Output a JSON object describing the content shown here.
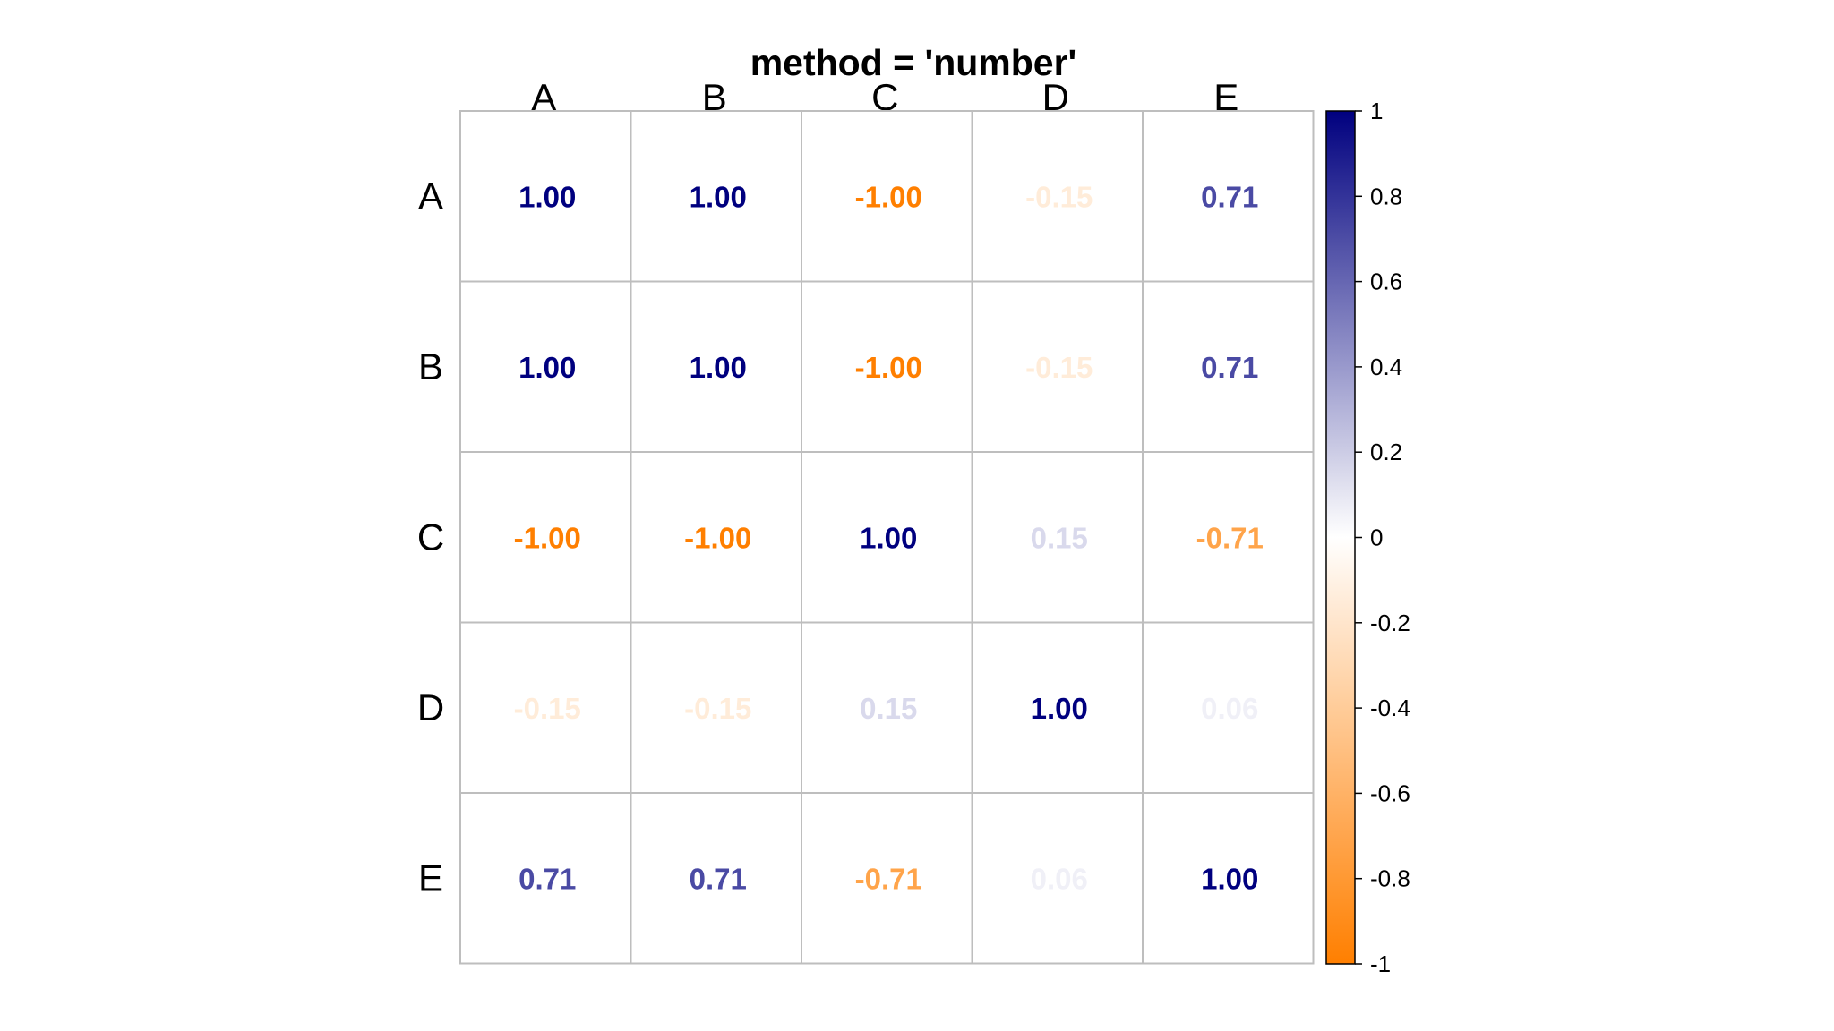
{
  "chart_data": {
    "type": "heatmap",
    "title": "method = 'number'",
    "method": "number",
    "columns": [
      "A",
      "B",
      "C",
      "D",
      "E"
    ],
    "rows": [
      "A",
      "B",
      "C",
      "D",
      "E"
    ],
    "values": [
      [
        1.0,
        1.0,
        -1.0,
        -0.15,
        0.71
      ],
      [
        1.0,
        1.0,
        -1.0,
        -0.15,
        0.71
      ],
      [
        -1.0,
        -1.0,
        1.0,
        0.15,
        -0.71
      ],
      [
        -0.15,
        -0.15,
        0.15,
        1.0,
        0.06
      ],
      [
        0.71,
        0.71,
        -0.71,
        0.06,
        1.0
      ]
    ],
    "value_labels": [
      [
        "1.00",
        "1.00",
        "-1.00",
        "-0.15",
        "0.71"
      ],
      [
        "1.00",
        "1.00",
        "-1.00",
        "-0.15",
        "0.71"
      ],
      [
        "-1.00",
        "-1.00",
        "1.00",
        "0.15",
        "-0.71"
      ],
      [
        "-0.15",
        "-0.15",
        "0.15",
        "1.00",
        "0.06"
      ],
      [
        "0.71",
        "0.71",
        "-0.71",
        "0.06",
        "1.00"
      ]
    ],
    "legend": {
      "range": [
        -1,
        1
      ],
      "ticks": [
        1,
        0.8,
        0.6,
        0.4,
        0.2,
        0,
        -0.2,
        -0.4,
        -0.6,
        -0.8,
        -1
      ],
      "tick_labels": [
        "1",
        "0.8",
        "0.6",
        "0.4",
        "0.2",
        "0",
        "-0.2",
        "-0.4",
        "-0.6",
        "-0.8",
        "-1"
      ],
      "placement": "right"
    },
    "colors": {
      "positive": "#00007F",
      "zero": "#FFFFFF",
      "negative": "#FF7F00",
      "grid": "#BEBEBE"
    },
    "grid": true
  }
}
